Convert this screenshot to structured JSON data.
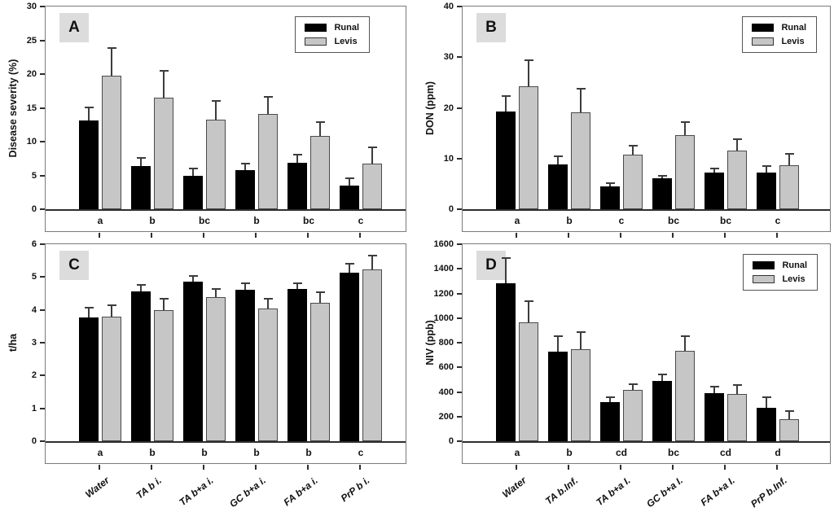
{
  "figure": {
    "background": "#ffffff"
  },
  "legend": {
    "items": [
      {
        "label": "Runal",
        "swatch": "black-filled-rect"
      },
      {
        "label": "Levis",
        "swatch": "gray-filled-rect"
      }
    ]
  },
  "colors": {
    "bar_runal": "#000000",
    "bar_levis": "#c6c6c6",
    "bar_levis_border": "#4a4a4a",
    "frame": "#7a7a7a",
    "axis": "#2e2e2e",
    "error_bar": "#3c3c3c",
    "panel_label_bg": "#dcdcdc",
    "background": "#ffffff"
  },
  "chart_data": [
    {
      "type": "bar",
      "panel_label": "A",
      "ylabel": "Disease severity (%)",
      "ylim": [
        0,
        30
      ],
      "yticks": [
        0,
        5,
        10,
        15,
        20,
        25,
        30
      ],
      "group_letters": [
        "a",
        "b",
        "bc",
        "b",
        "bc",
        "c"
      ],
      "series": [
        {
          "name": "Runal",
          "values": [
            13.1,
            6.4,
            4.9,
            5.8,
            6.9,
            3.5
          ],
          "error_tops": [
            15.1,
            7.6,
            6.0,
            6.8,
            8.1,
            4.6
          ]
        },
        {
          "name": "Levis",
          "values": [
            19.7,
            16.5,
            13.2,
            14.1,
            10.9,
            6.8
          ],
          "error_tops": [
            23.9,
            20.5,
            16.0,
            16.6,
            12.9,
            9.2
          ]
        }
      ],
      "show_legend": true,
      "show_x_labels": false,
      "legend_position": "top-right",
      "grid": false
    },
    {
      "type": "bar",
      "panel_label": "B",
      "ylabel": "DON (ppm)",
      "ylim": [
        0,
        40
      ],
      "yticks": [
        0,
        10,
        20,
        30,
        40
      ],
      "group_letters": [
        "a",
        "b",
        "c",
        "bc",
        "bc",
        "c"
      ],
      "series": [
        {
          "name": "Runal",
          "values": [
            19.2,
            8.9,
            4.5,
            6.1,
            7.2,
            7.2
          ],
          "error_tops": [
            22.4,
            10.5,
            5.2,
            6.6,
            8.0,
            8.5
          ]
        },
        {
          "name": "Levis",
          "values": [
            24.2,
            19.1,
            10.8,
            14.6,
            11.5,
            8.6
          ],
          "error_tops": [
            29.4,
            23.7,
            12.6,
            17.2,
            13.8,
            11.0
          ]
        }
      ],
      "show_legend": true,
      "show_x_labels": false,
      "legend_position": "top-right",
      "grid": false
    },
    {
      "type": "bar",
      "panel_label": "C",
      "ylabel": "t/ha",
      "ylim": [
        0,
        6
      ],
      "yticks": [
        0,
        1,
        2,
        3,
        4,
        5,
        6
      ],
      "categories": [
        "Water",
        "TA  b i.",
        "TA b+a i.",
        "GC b+a i.",
        "FA b+a i.",
        "PrP  b i."
      ],
      "group_letters": [
        "a",
        "b",
        "b",
        "b",
        "b",
        "c"
      ],
      "series": [
        {
          "name": "Runal",
          "values": [
            3.77,
            4.55,
            4.85,
            4.6,
            4.63,
            5.12
          ],
          "error_tops": [
            4.06,
            4.76,
            5.03,
            4.82,
            4.81,
            5.4
          ]
        },
        {
          "name": "Levis",
          "values": [
            3.79,
            3.99,
            4.39,
            4.05,
            4.21,
            5.24
          ],
          "error_tops": [
            4.15,
            4.33,
            4.64,
            4.35,
            4.53,
            5.65
          ]
        }
      ],
      "show_legend": false,
      "show_x_labels": true,
      "grid": false
    },
    {
      "type": "bar",
      "panel_label": "D",
      "ylabel": "NIV (ppb)",
      "ylim": [
        0,
        1600
      ],
      "yticks": [
        0,
        200,
        400,
        600,
        800,
        1000,
        1200,
        1400,
        1600
      ],
      "categories": [
        "Water",
        "TA b.Inf.",
        "TA b+a I.",
        "GC b+a I.",
        "FA b+a I.",
        "PrP b.Inf."
      ],
      "group_letters": [
        "a",
        "b",
        "cd",
        "bc",
        "cd",
        "d"
      ],
      "series": [
        {
          "name": "Runal",
          "values": [
            1280,
            730,
            320,
            490,
            390,
            270
          ],
          "error_tops": [
            1490,
            850,
            360,
            545,
            440,
            355
          ]
        },
        {
          "name": "Levis",
          "values": [
            965,
            745,
            415,
            735,
            385,
            180
          ],
          "error_tops": [
            1140,
            885,
            460,
            855,
            455,
            245
          ]
        }
      ],
      "show_legend": true,
      "show_x_labels": true,
      "legend_position": "top-right",
      "grid": false
    }
  ]
}
